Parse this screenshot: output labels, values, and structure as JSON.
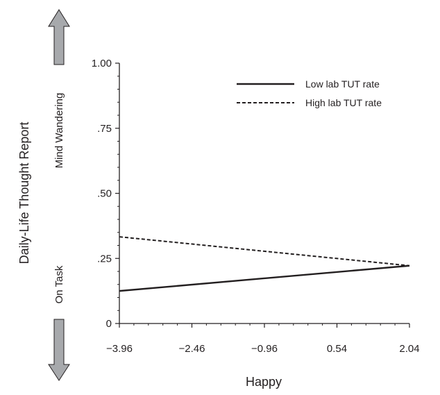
{
  "chart_data": {
    "type": "line",
    "title": "",
    "xlabel": "Happy",
    "ylabel": "Daily-Life Thought Report",
    "y_upper_label": "Mind Wandering",
    "y_lower_label": "On Task",
    "x_ticks": [
      -3.96,
      -2.46,
      -0.96,
      0.54,
      2.04
    ],
    "x_tick_labels": [
      "−3.96",
      "−2.46",
      "−0.96",
      "0.54",
      "2.04"
    ],
    "y_ticks": [
      0,
      0.25,
      0.5,
      0.75,
      1.0
    ],
    "y_tick_labels": [
      "0",
      ".25",
      ".50",
      ".75",
      "1.00"
    ],
    "xlim": [
      -3.96,
      2.04
    ],
    "ylim": [
      0,
      1.0
    ],
    "grid": false,
    "legend_position": "top-right",
    "series": [
      {
        "name": "Low lab TUT rate",
        "style": "solid",
        "x": [
          -3.96,
          2.04
        ],
        "y": [
          0.125,
          0.222
        ]
      },
      {
        "name": "High lab TUT rate",
        "style": "dashed",
        "x": [
          -3.96,
          2.04
        ],
        "y": [
          0.333,
          0.222
        ]
      }
    ]
  },
  "colors": {
    "line": "#231f20",
    "arrow_fill": "#a7a9ac",
    "arrow_stroke": "#231f20"
  }
}
